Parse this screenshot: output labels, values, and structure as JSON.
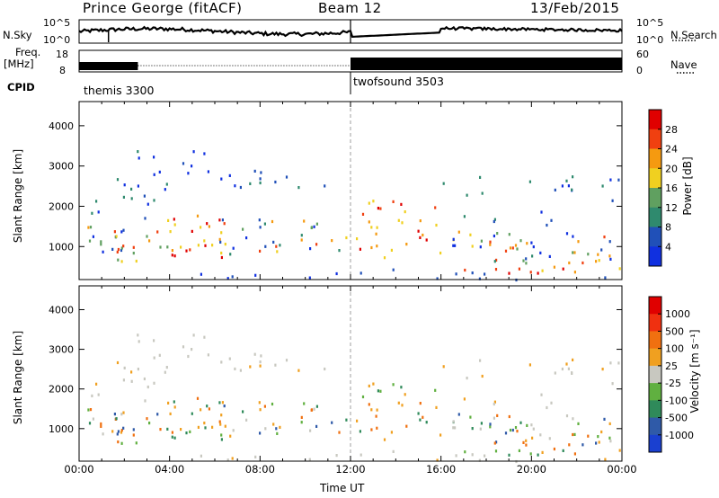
{
  "header": {
    "station": "Prince George (fitACF)",
    "beam": "Beam 12",
    "date": "13/Feb/2015"
  },
  "strips": {
    "nsky": {
      "label": "N.Sky",
      "ticks": [
        "10^5",
        "10^0"
      ]
    },
    "nsearch": {
      "label": "N.Search",
      "ticks": [
        "10^5",
        "10^0"
      ]
    },
    "freq": {
      "label_top": "Freq.",
      "label_bottom": "[MHz]",
      "ticks": [
        "18",
        "8"
      ]
    },
    "nave": {
      "label": "Nave",
      "ticks": [
        "60",
        "0"
      ]
    },
    "cpid": {
      "label": "CPID",
      "segments": [
        {
          "name": "themis 3300",
          "start_hour": 0
        },
        {
          "name": "twofsound 3503",
          "start_hour": 12
        }
      ]
    }
  },
  "chart_data": [
    {
      "type": "heatmap",
      "title": "",
      "xlabel": "Time UT",
      "ylabel": "Slant Range [km]",
      "xlim": [
        0,
        24
      ],
      "ylim": [
        180,
        4600
      ],
      "x_ticks": [
        "00:00",
        "04:00",
        "08:00",
        "12:00",
        "16:00",
        "20:00",
        "00:00"
      ],
      "y_ticks": [
        1000,
        2000,
        3000,
        4000
      ],
      "colorbar": {
        "label": "Power [dB]",
        "ticks": [
          4,
          8,
          12,
          16,
          20,
          24,
          28
        ],
        "colors": [
          "#1030e0",
          "#2050b8",
          "#2f8a6e",
          "#60a060",
          "#f0d020",
          "#f59a10",
          "#f04010",
          "#e00000"
        ]
      }
    },
    {
      "type": "heatmap",
      "title": "",
      "xlabel": "Time UT",
      "ylabel": "Slant Range [km]",
      "xlim": [
        0,
        24
      ],
      "ylim": [
        180,
        4600
      ],
      "x_ticks": [
        "00:00",
        "04:00",
        "08:00",
        "12:00",
        "16:00",
        "20:00",
        "00:00"
      ],
      "y_ticks": [
        1000,
        2000,
        3000,
        4000
      ],
      "colorbar": {
        "label": "Velocity [m s⁻¹]",
        "ticks": [
          "1000",
          "500",
          "100",
          "25",
          "-25",
          "-100",
          "-500",
          "-1000"
        ],
        "colors": [
          "#1a40d0",
          "#2f5aa8",
          "#2f8a5a",
          "#60b040",
          "#c8c8c0",
          "#f0a020",
          "#f07010",
          "#f03010",
          "#e00000"
        ]
      }
    }
  ],
  "xaxis": {
    "title": "Time UT",
    "ticks": [
      "00:00",
      "04:00",
      "08:00",
      "12:00",
      "16:00",
      "20:00",
      "00:00"
    ]
  }
}
